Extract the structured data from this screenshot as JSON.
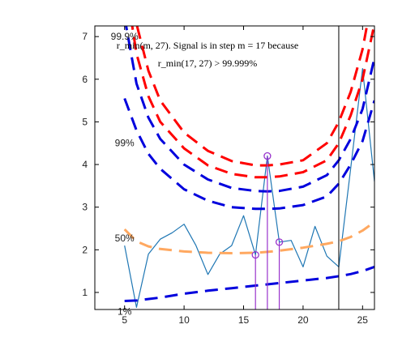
{
  "chart_data": {
    "type": "line",
    "title": "",
    "xlabel": "",
    "ylabel": "",
    "xlim": [
      2.5,
      26
    ],
    "ylim": [
      0.6,
      7.25
    ],
    "x_ticks": [
      5,
      10,
      15,
      20,
      25
    ],
    "y_ticks": [
      1,
      2,
      3,
      4,
      5,
      6,
      7
    ],
    "grid": false,
    "annotation": {
      "line1": "r_min(m, 27). Signal is in step m = 17 because",
      "line2": "r_min(17, 27) > 99.999%"
    },
    "percentile_labels": [
      {
        "text": "99.9%",
        "x": 5,
        "y": 7.0
      },
      {
        "text": "99%",
        "x": 5,
        "y": 4.5
      },
      {
        "text": "50%",
        "x": 5,
        "y": 2.27
      },
      {
        "text": "1%",
        "x": 5,
        "y": 0.55
      }
    ],
    "step_marker_x": 23,
    "series": [
      {
        "color": "#1f77b4",
        "style": "solid",
        "x": [
          5,
          6,
          7,
          8,
          9,
          10,
          11,
          12,
          13,
          14,
          15,
          16,
          17,
          18,
          19,
          20,
          21,
          22,
          23,
          24,
          25,
          26
        ],
        "y": [
          2.1,
          0.65,
          1.9,
          2.25,
          2.4,
          2.6,
          2.1,
          1.42,
          1.9,
          2.1,
          2.8,
          1.88,
          4.2,
          2.18,
          2.22,
          1.6,
          2.55,
          1.85,
          1.6,
          3.9,
          6.25,
          3.6
        ]
      },
      {
        "color": "#ff0000",
        "style": "dashed",
        "x": [
          5,
          6,
          7,
          8,
          10,
          12,
          14,
          16,
          17,
          18,
          20,
          22,
          23,
          24,
          25,
          26
        ],
        "y": [
          9.6,
          7.3,
          6.2,
          5.5,
          4.75,
          4.32,
          4.08,
          3.98,
          3.98,
          4.0,
          4.1,
          4.5,
          5.0,
          5.7,
          6.7,
          8.2
        ]
      },
      {
        "color": "#ff0000",
        "style": "dashed",
        "x": [
          5,
          6,
          7,
          8,
          10,
          12,
          14,
          16,
          17,
          18,
          20,
          22,
          23,
          24,
          25,
          26
        ],
        "y": [
          8.4,
          6.6,
          5.6,
          5.0,
          4.38,
          3.98,
          3.78,
          3.7,
          3.7,
          3.72,
          3.82,
          4.1,
          4.5,
          5.15,
          6.0,
          7.3
        ]
      },
      {
        "color": "#0000dd",
        "style": "dashed",
        "x": [
          5,
          6,
          7,
          8,
          10,
          12,
          14,
          16,
          17,
          18,
          20,
          22,
          23,
          24,
          25,
          26
        ],
        "y": [
          7.45,
          5.9,
          5.1,
          4.6,
          4.0,
          3.65,
          3.45,
          3.38,
          3.37,
          3.38,
          3.48,
          3.75,
          4.1,
          4.6,
          5.3,
          6.5
        ]
      },
      {
        "color": "#0000dd",
        "style": "dashed",
        "x": [
          5,
          6,
          7,
          8,
          10,
          12,
          14,
          16,
          17,
          18,
          20,
          22,
          23,
          24,
          25,
          26
        ],
        "y": [
          5.55,
          4.8,
          4.25,
          3.9,
          3.42,
          3.15,
          3.0,
          2.96,
          2.96,
          2.97,
          3.05,
          3.25,
          3.55,
          4.0,
          4.55,
          5.5
        ]
      },
      {
        "color": "#ffa860",
        "style": "dashed",
        "x": [
          5,
          6,
          7,
          8,
          10,
          12,
          14,
          16,
          17,
          18,
          20,
          22,
          23,
          24,
          25,
          26
        ],
        "y": [
          2.48,
          2.2,
          2.08,
          2.02,
          1.96,
          1.93,
          1.92,
          1.93,
          1.95,
          1.98,
          2.05,
          2.14,
          2.2,
          2.3,
          2.45,
          2.65
        ]
      },
      {
        "color": "#0000dd",
        "style": "dashed",
        "x": [
          5,
          6,
          8,
          10,
          12,
          14,
          16,
          18,
          20,
          22,
          23,
          24,
          25,
          26
        ],
        "y": [
          0.8,
          0.81,
          0.88,
          0.97,
          1.04,
          1.1,
          1.16,
          1.22,
          1.28,
          1.34,
          1.38,
          1.43,
          1.5,
          1.6
        ]
      }
    ],
    "stems": [
      {
        "x": 16,
        "y": 1.88,
        "color": "#9933cc"
      },
      {
        "x": 17,
        "y": 4.2,
        "color": "#9933cc"
      },
      {
        "x": 18,
        "y": 2.18,
        "color": "#9933cc"
      }
    ]
  }
}
